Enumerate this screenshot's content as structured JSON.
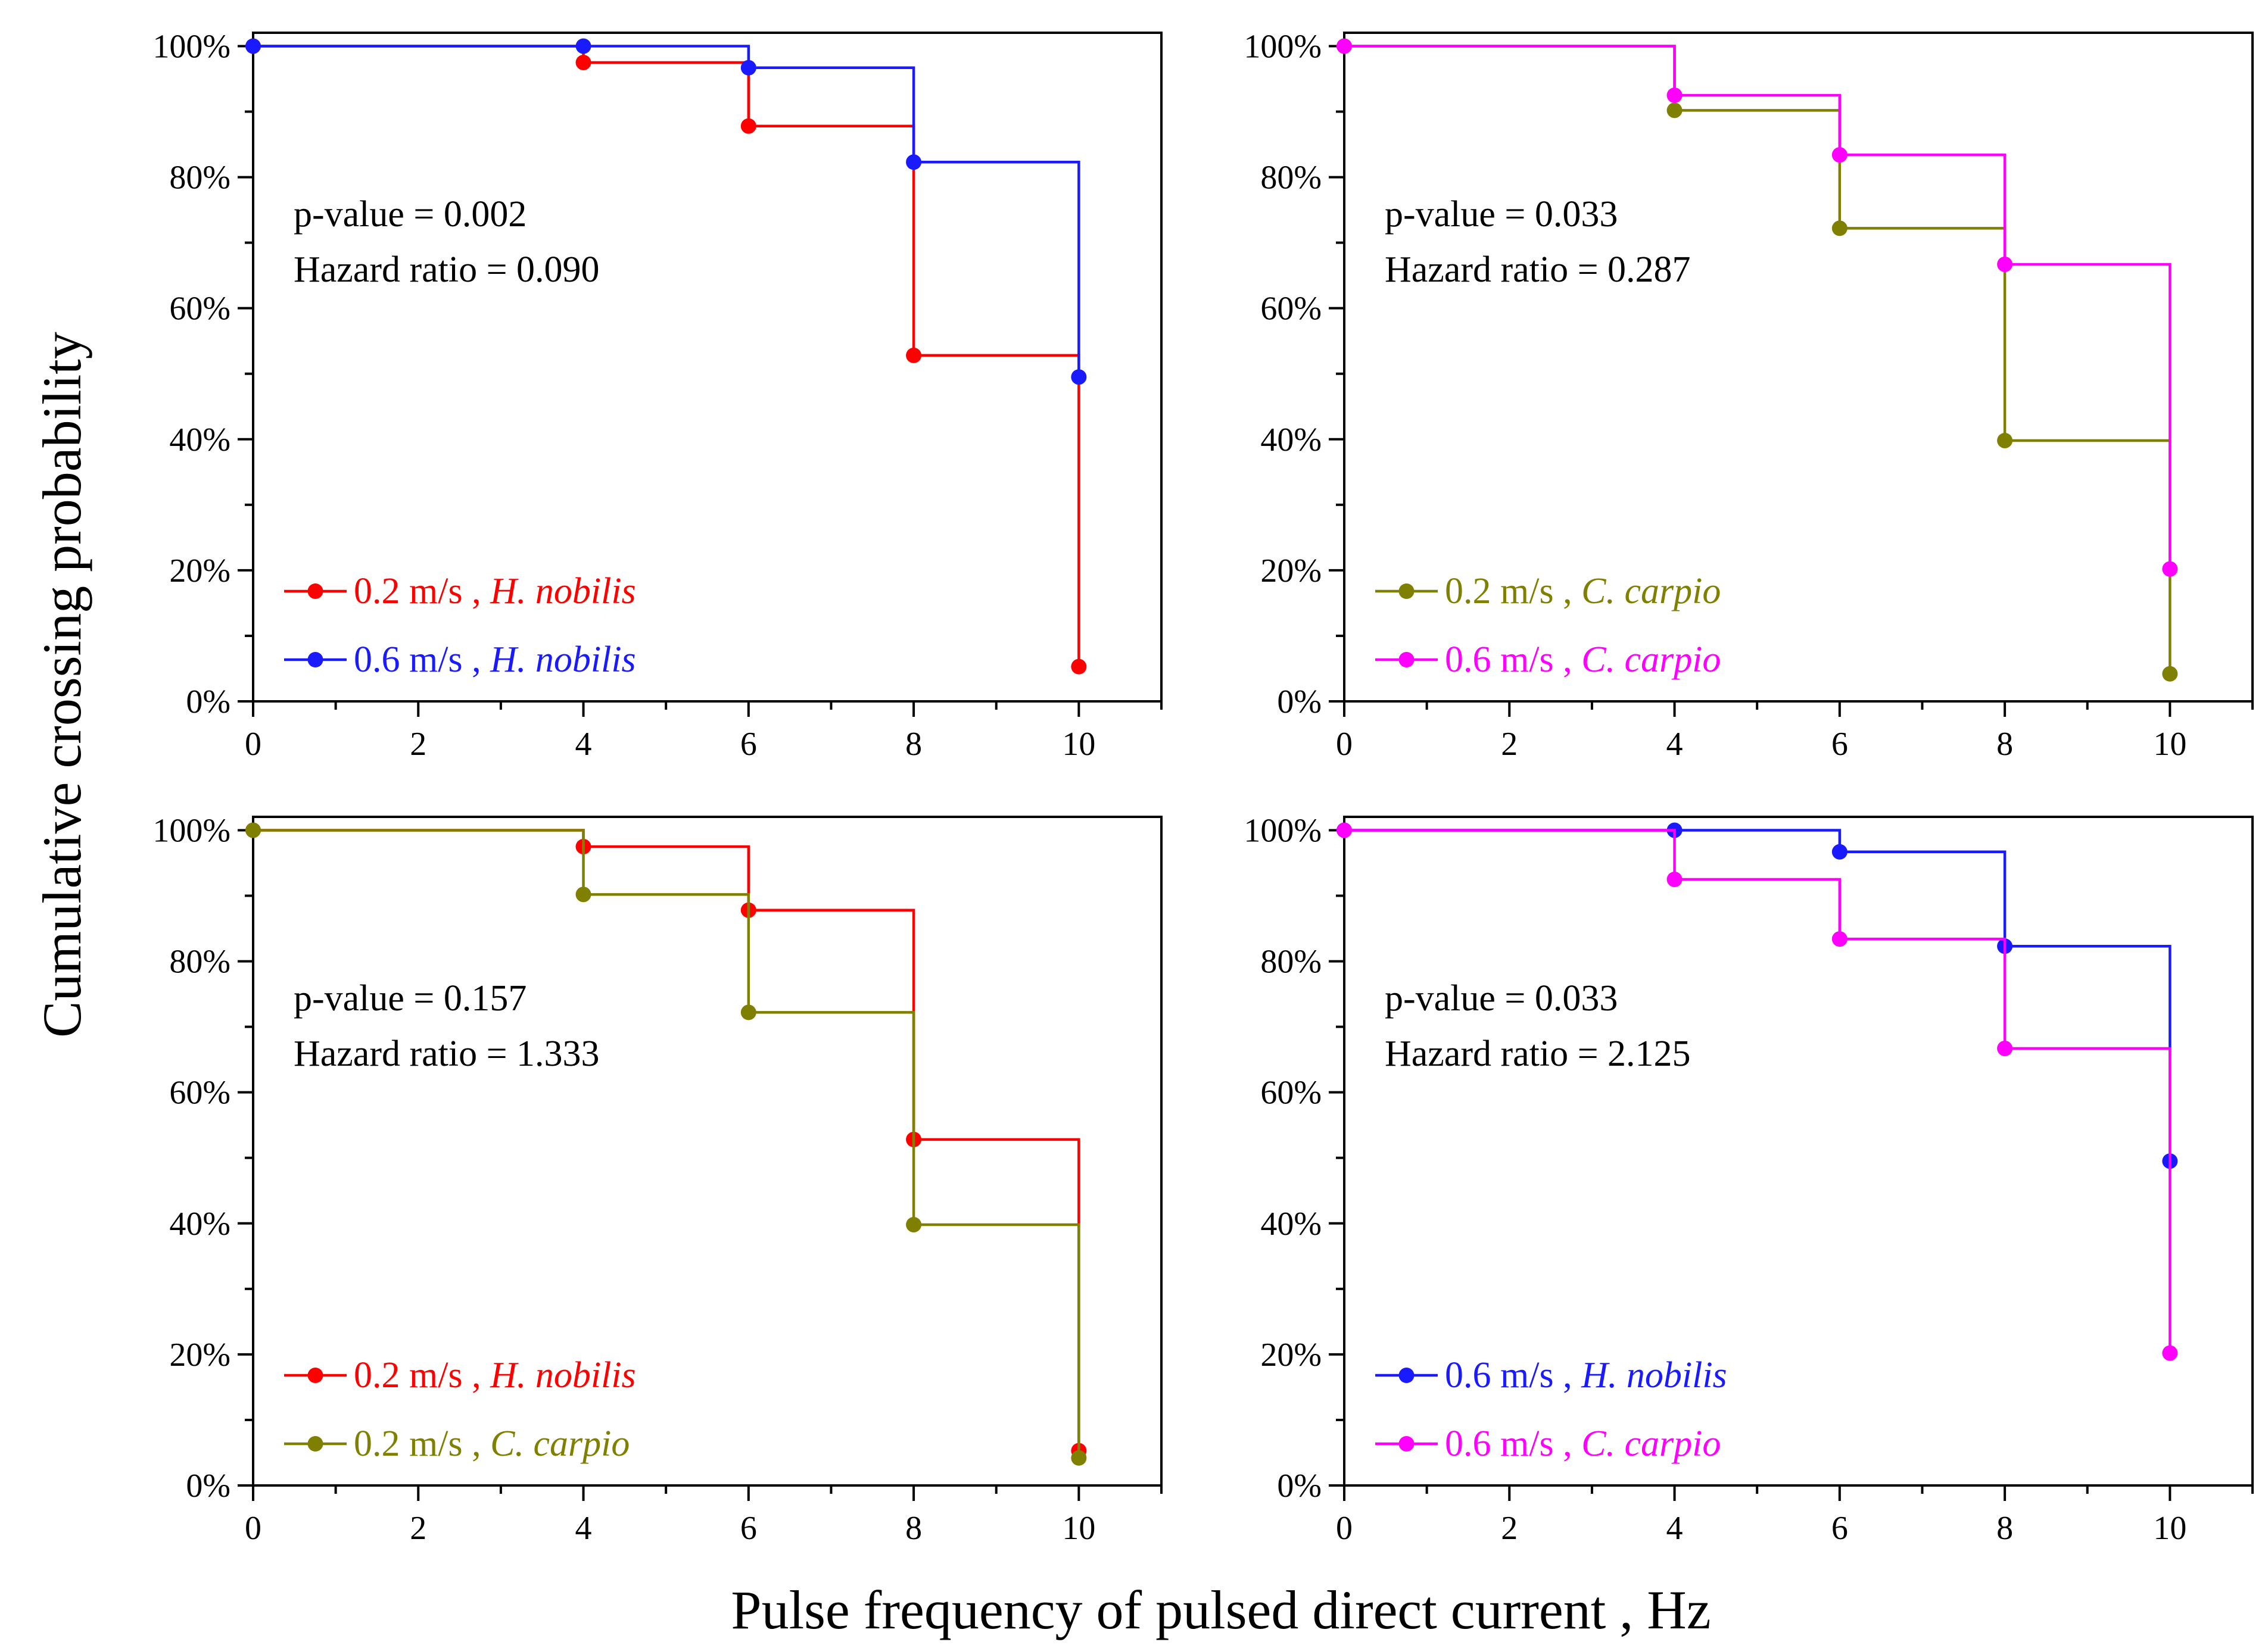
{
  "figure": {
    "ylabel": "Cumulative crossing probability",
    "xlabel": "Pulse frequency of pulsed direct current , Hz"
  },
  "colors": {
    "red": "#ff0000",
    "blue": "#1a1aff",
    "olive": "#808000",
    "magenta": "#ff00ff"
  },
  "chart_data": [
    {
      "type": "line",
      "step": true,
      "x": [
        0,
        4,
        6,
        8,
        10
      ],
      "xlim": [
        0,
        11
      ],
      "ylim": [
        0,
        100
      ],
      "xticks": [
        "0",
        "2",
        "4",
        "6",
        "8",
        "10"
      ],
      "yticks": [
        "0%",
        "20%",
        "40%",
        "60%",
        "80%",
        "100%"
      ],
      "annotation": [
        "p-value = 0.002",
        "Hazard ratio = 0.090"
      ],
      "series": [
        {
          "speed": "0.2 m/s ,",
          "species": "H. nobilis",
          "color": "#ff0000",
          "values": [
            100,
            97.5,
            87.8,
            52.8,
            5.3
          ]
        },
        {
          "speed": "0.6 m/s ,",
          "species": "H. nobilis",
          "color": "#1a1aff",
          "values": [
            100,
            100,
            96.7,
            82.3,
            49.5
          ]
        }
      ]
    },
    {
      "type": "line",
      "step": true,
      "x": [
        0,
        4,
        6,
        8,
        10
      ],
      "xlim": [
        0,
        11
      ],
      "ylim": [
        0,
        100
      ],
      "xticks": [
        "0",
        "2",
        "4",
        "6",
        "8",
        "10"
      ],
      "yticks": [
        "0%",
        "20%",
        "40%",
        "60%",
        "80%",
        "100%"
      ],
      "annotation": [
        "p-value = 0.033",
        "Hazard ratio = 0.287"
      ],
      "series": [
        {
          "speed": "0.2 m/s ,",
          "species": "C. carpio",
          "color": "#808000",
          "values": [
            100,
            90.2,
            72.2,
            39.8,
            4.2
          ]
        },
        {
          "speed": "0.6 m/s ,",
          "species": "C. carpio",
          "color": "#ff00ff",
          "values": [
            100,
            92.5,
            83.4,
            66.7,
            20.2
          ]
        }
      ]
    },
    {
      "type": "line",
      "step": true,
      "x": [
        0,
        4,
        6,
        8,
        10
      ],
      "xlim": [
        0,
        11
      ],
      "ylim": [
        0,
        100
      ],
      "xticks": [
        "0",
        "2",
        "4",
        "6",
        "8",
        "10"
      ],
      "yticks": [
        "0%",
        "20%",
        "40%",
        "60%",
        "80%",
        "100%"
      ],
      "annotation": [
        "p-value = 0.157",
        "Hazard ratio = 1.333"
      ],
      "series": [
        {
          "speed": "0.2 m/s ,",
          "species": "H. nobilis",
          "color": "#ff0000",
          "values": [
            100,
            97.5,
            87.8,
            52.8,
            5.3
          ]
        },
        {
          "speed": "0.2 m/s ,",
          "species": "C. carpio",
          "color": "#808000",
          "values": [
            100,
            90.2,
            72.2,
            39.8,
            4.2
          ]
        }
      ]
    },
    {
      "type": "line",
      "step": true,
      "x": [
        0,
        4,
        6,
        8,
        10
      ],
      "xlim": [
        0,
        11
      ],
      "ylim": [
        0,
        100
      ],
      "xticks": [
        "0",
        "2",
        "4",
        "6",
        "8",
        "10"
      ],
      "yticks": [
        "0%",
        "20%",
        "40%",
        "60%",
        "80%",
        "100%"
      ],
      "annotation": [
        "p-value = 0.033",
        "Hazard ratio = 2.125"
      ],
      "series": [
        {
          "speed": "0.6 m/s ,",
          "species": "H. nobilis",
          "color": "#1a1aff",
          "values": [
            100,
            100,
            96.7,
            82.3,
            49.5
          ]
        },
        {
          "speed": "0.6 m/s ,",
          "species": "C. carpio",
          "color": "#ff00ff",
          "values": [
            100,
            92.5,
            83.4,
            66.7,
            20.2
          ]
        }
      ]
    }
  ]
}
